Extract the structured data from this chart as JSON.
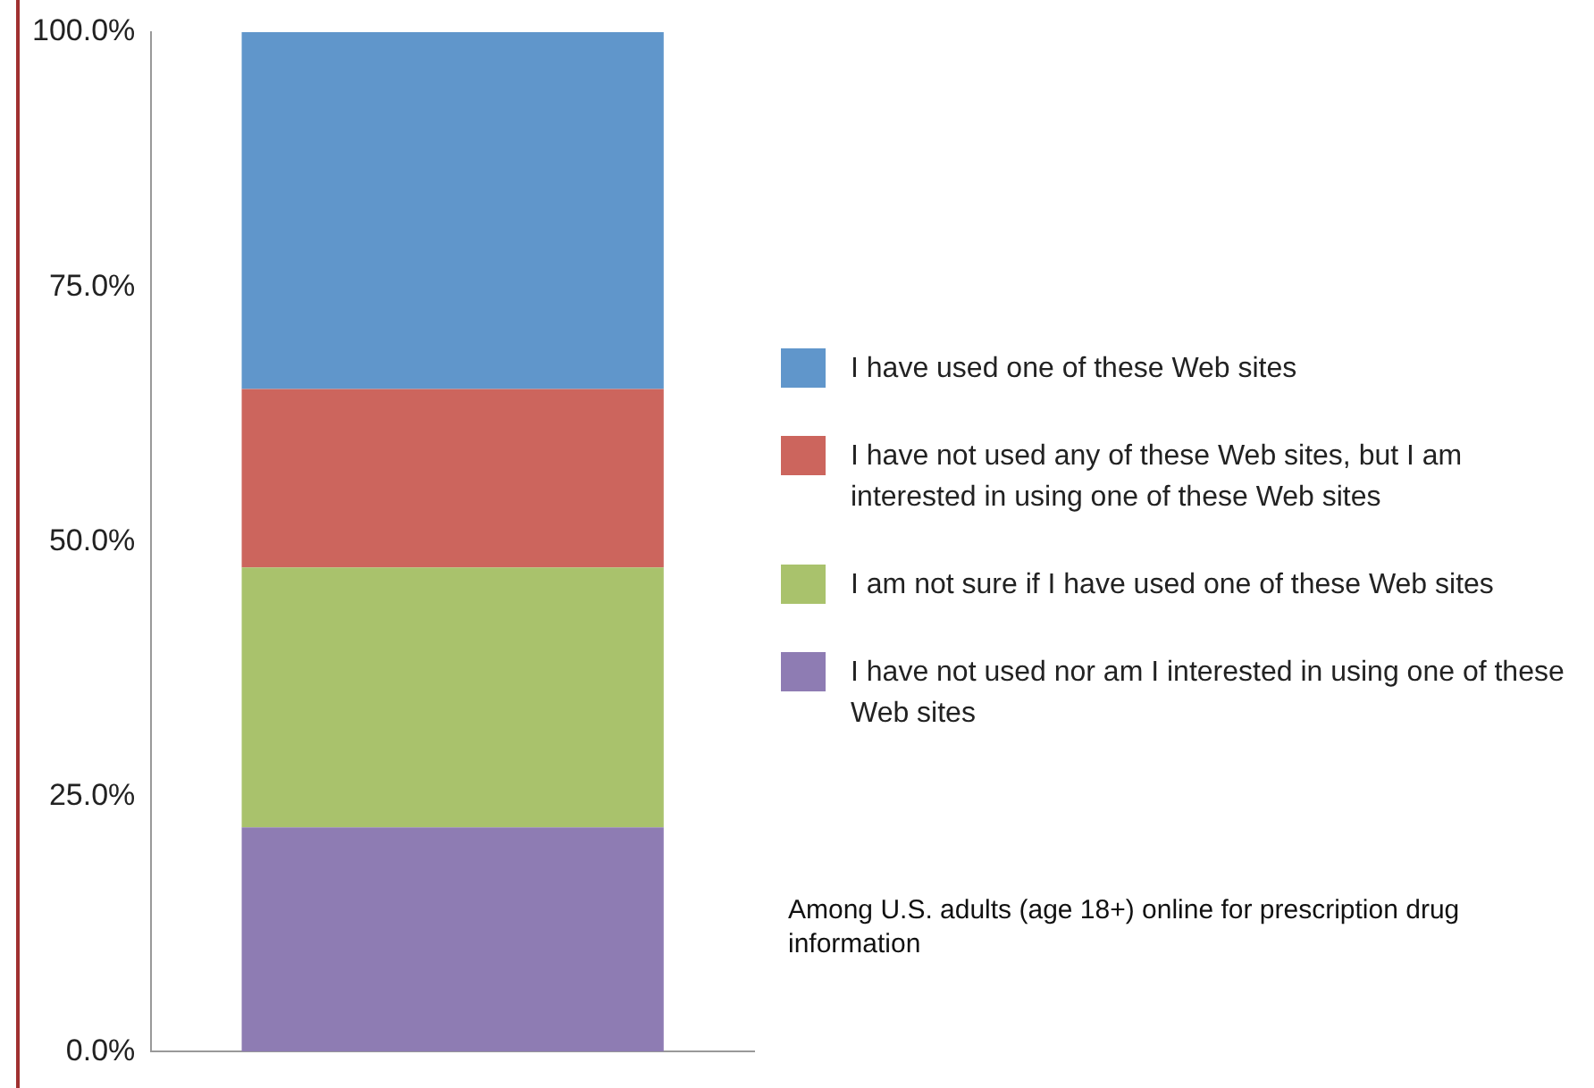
{
  "chart_data": {
    "type": "bar",
    "stacked": true,
    "categories": [
      null
    ],
    "series": [
      {
        "name": "I have not used nor am I interested in using one of these Web sites",
        "color": "#8e7cb3",
        "values": [
          22
        ]
      },
      {
        "name": "I am not sure if I have used one of these Web sites",
        "color": "#a9c26c",
        "values": [
          25.5
        ]
      },
      {
        "name": "I have not used any of these Web sites, but I am interested in using one of these Web sites",
        "color": "#cc655d",
        "values": [
          17.5
        ]
      },
      {
        "name": "I have used one of these Web sites",
        "color": "#6096cb",
        "values": [
          35
        ]
      }
    ],
    "ylim": [
      0,
      100
    ],
    "yticks": [
      {
        "value": 0,
        "label": "0.0%"
      },
      {
        "value": 25,
        "label": "25.0%"
      },
      {
        "value": 50,
        "label": "50.0%"
      },
      {
        "value": 75,
        "label": "75.0%"
      },
      {
        "value": 100,
        "label": "100.0%"
      }
    ],
    "grid": false,
    "legend": "right",
    "annotations": [
      "Among U.S. adults (age 18+) online for prescription drug information"
    ]
  }
}
